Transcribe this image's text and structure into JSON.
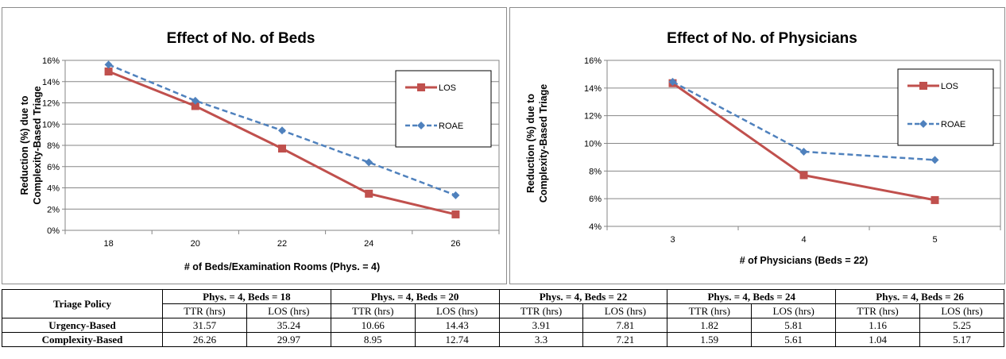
{
  "chart_data": [
    {
      "type": "line",
      "title": "Effect of No. of Beds",
      "xlabel": "# of Beds/Examination Rooms (Phys. = 4)",
      "ylabel_line1": "Reduction (%) due to",
      "ylabel_line2": "Complexity-Based Triage",
      "categories": [
        "18",
        "20",
        "22",
        "24",
        "26"
      ],
      "x": [
        18,
        20,
        22,
        24,
        26
      ],
      "ylim": [
        0,
        16
      ],
      "yticks": [
        "0%",
        "2%",
        "4%",
        "6%",
        "8%",
        "10%",
        "12%",
        "14%",
        "16%"
      ],
      "grid": true,
      "legend_position": "right",
      "series": [
        {
          "name": "LOS",
          "values": [
            14.95,
            11.7,
            7.7,
            3.45,
            1.5
          ],
          "color": "#c0504d",
          "style": "solid",
          "marker": "square"
        },
        {
          "name": "ROAE",
          "values": [
            15.6,
            12.2,
            9.4,
            6.4,
            3.3
          ],
          "color": "#4f81bd",
          "style": "dashed",
          "marker": "diamond"
        }
      ]
    },
    {
      "type": "line",
      "title": "Effect of No. of Physicians",
      "xlabel": "# of Physicians (Beds = 22)",
      "ylabel_line1": "Reduction (%) due to",
      "ylabel_line2": "Complexity-Based Triage",
      "categories": [
        "3",
        "4",
        "5"
      ],
      "x": [
        3,
        4,
        5
      ],
      "ylim": [
        4,
        16
      ],
      "yticks": [
        "4%",
        "6%",
        "8%",
        "10%",
        "12%",
        "14%",
        "16%"
      ],
      "grid": true,
      "legend_position": "right",
      "series": [
        {
          "name": "LOS",
          "values": [
            14.35,
            7.7,
            5.9
          ],
          "color": "#c0504d",
          "style": "solid",
          "marker": "square"
        },
        {
          "name": "ROAE",
          "values": [
            14.45,
            9.4,
            8.8
          ],
          "color": "#4f81bd",
          "style": "dashed",
          "marker": "diamond"
        }
      ]
    }
  ],
  "table": {
    "corner": "Triage Policy",
    "groups": [
      "Phys. = 4, Beds = 18",
      "Phys. = 4, Beds = 20",
      "Phys. = 4, Beds = 22",
      "Phys. = 4, Beds = 24",
      "Phys. = 4, Beds = 26"
    ],
    "subheaders": [
      "TTR (hrs)",
      "LOS (hrs)"
    ],
    "rows": [
      {
        "label": "Urgency-Based",
        "values": [
          "31.57",
          "35.24",
          "10.66",
          "14.43",
          "3.91",
          "7.81",
          "1.82",
          "5.81",
          "1.16",
          "5.25"
        ]
      },
      {
        "label": "Complexity-Based",
        "values": [
          "26.26",
          "29.97",
          "8.95",
          "12.74",
          "3.3",
          "7.21",
          "1.59",
          "5.61",
          "1.04",
          "5.17"
        ]
      }
    ]
  }
}
